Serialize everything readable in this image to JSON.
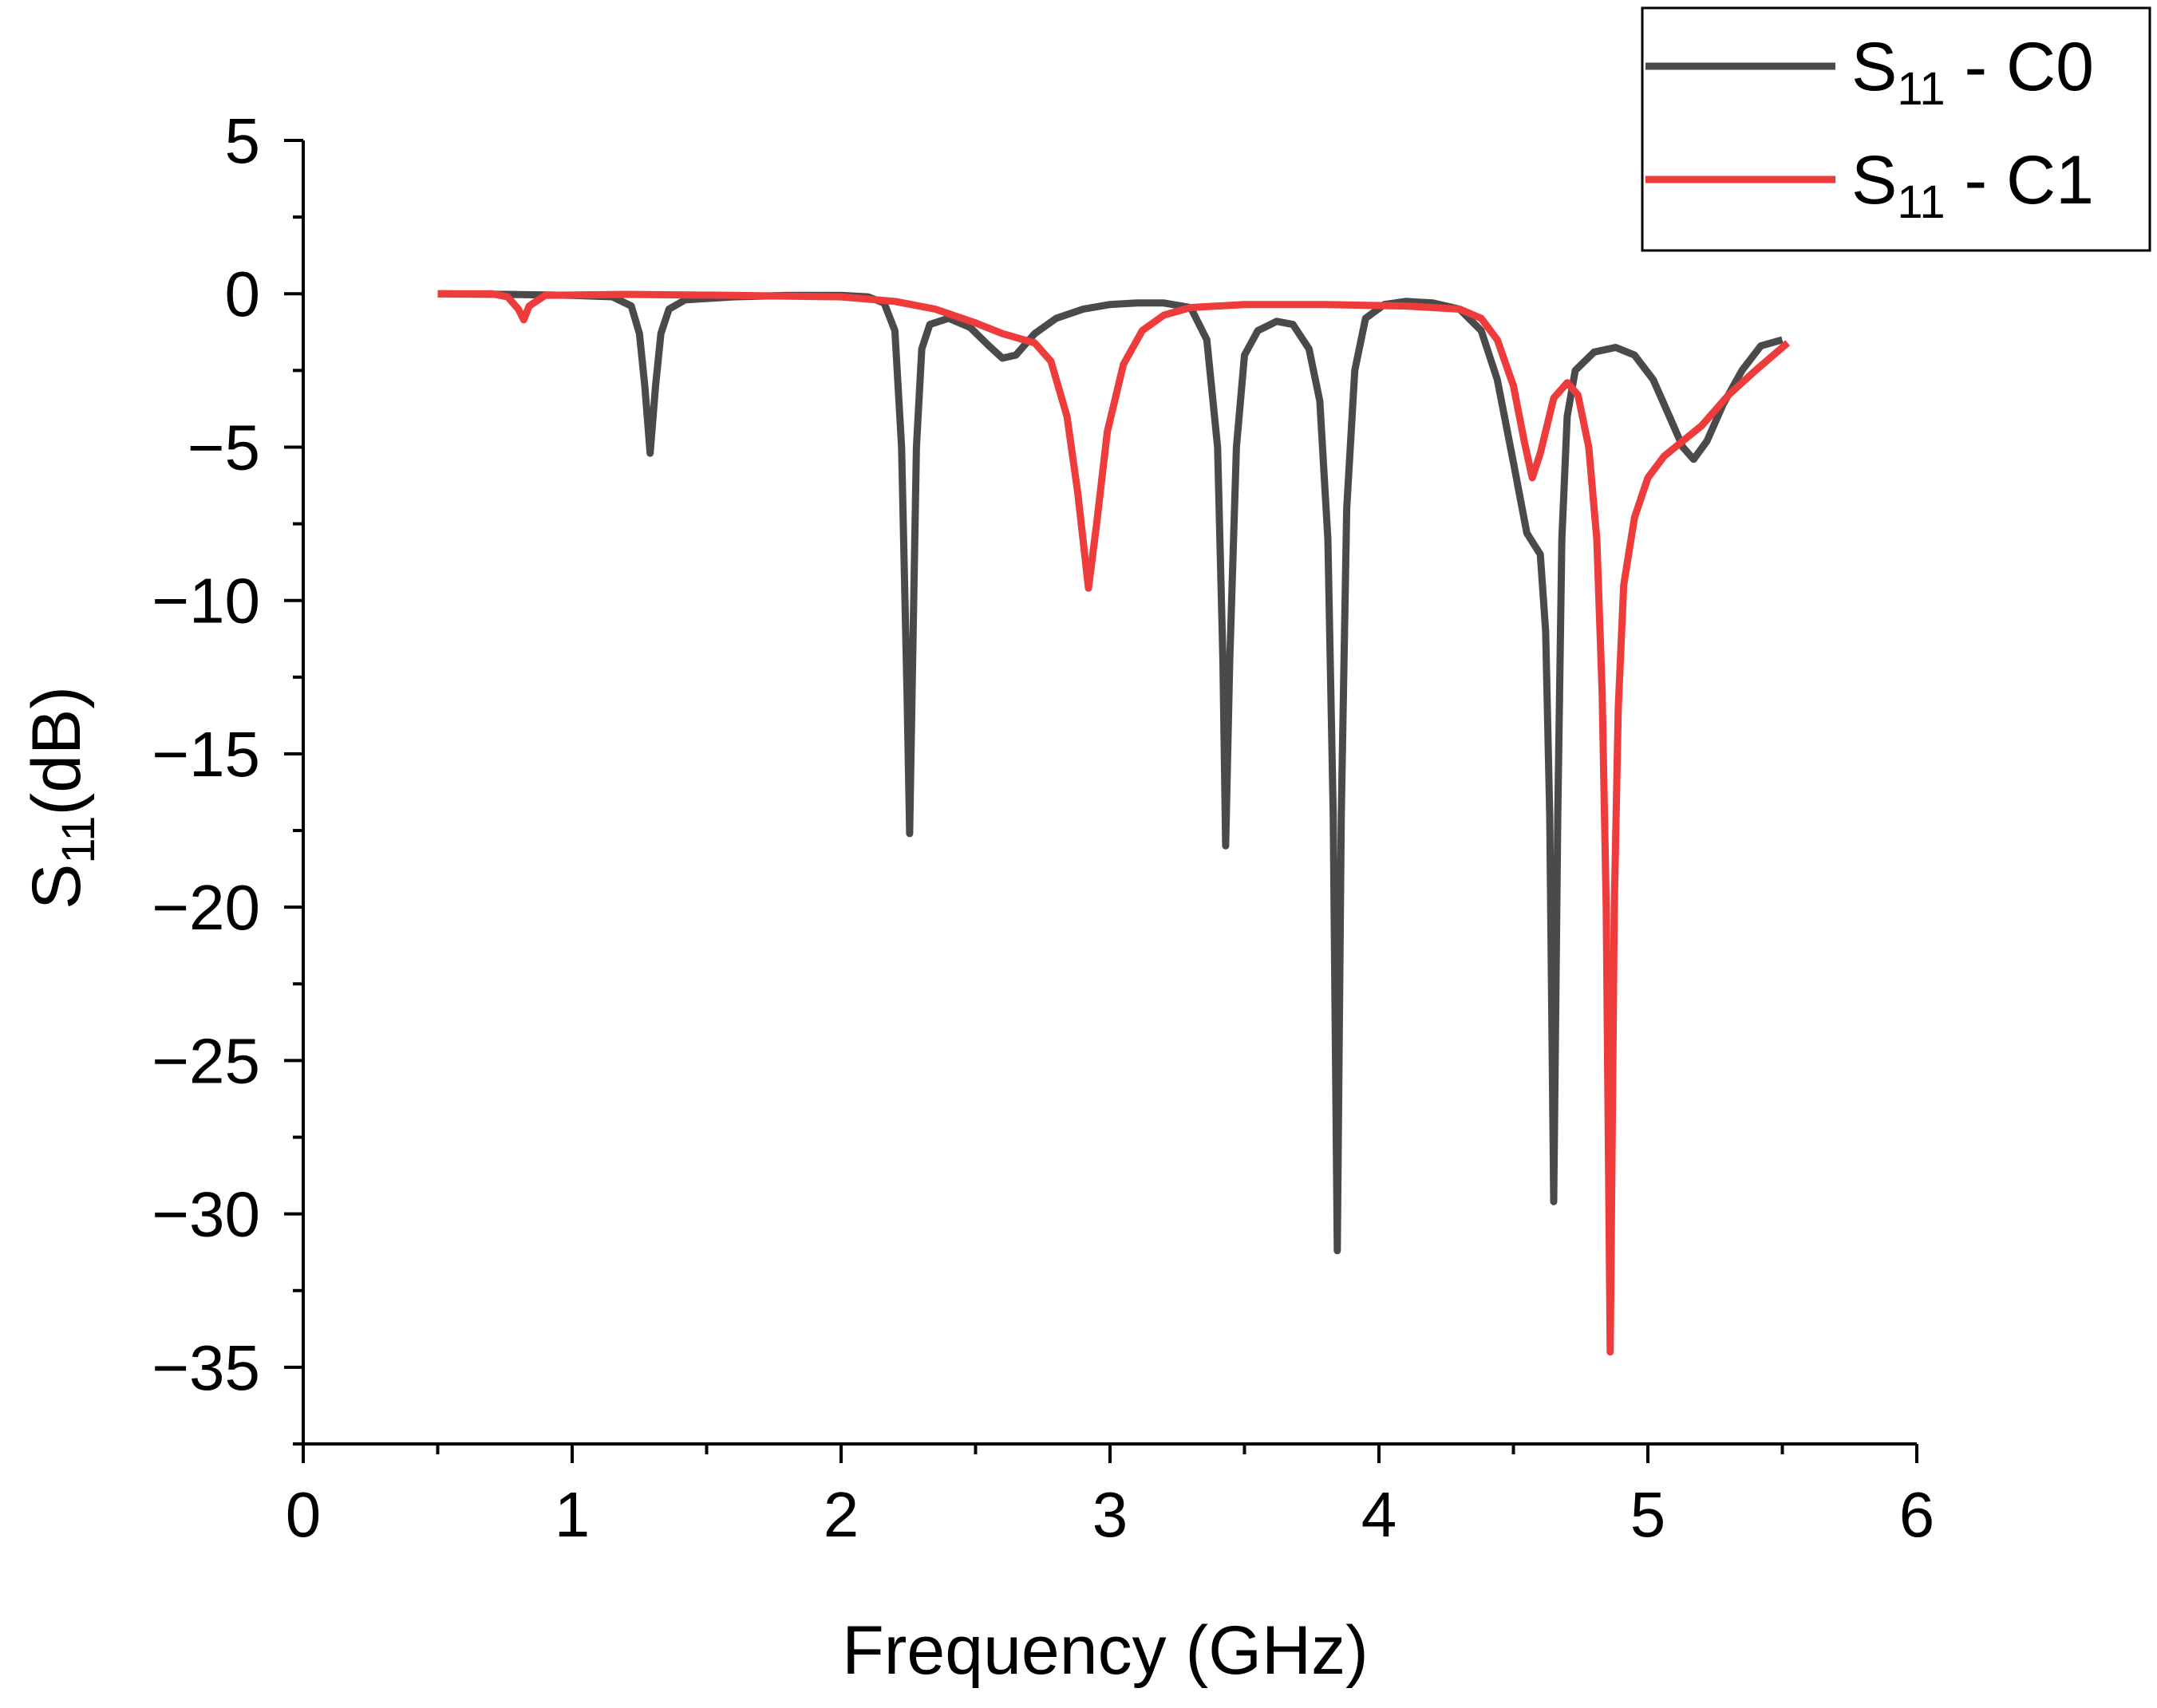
{
  "chart_data": {
    "type": "line",
    "xlabel": "Frequency (GHz)",
    "ylabel": {
      "main": "S",
      "sub": "11",
      "unit": "(dB)"
    },
    "xlim": [
      0,
      6
    ],
    "ylim": [
      -37.5,
      5
    ],
    "x_ticks": [
      0,
      1,
      2,
      3,
      4,
      5,
      6
    ],
    "x_tick_labels": [
      "0",
      "1",
      "2",
      "3",
      "4",
      "5",
      "6"
    ],
    "y_ticks": [
      5,
      0,
      -5,
      -10,
      -15,
      -20,
      -25,
      -30,
      -35
    ],
    "y_tick_labels": [
      "5",
      "0",
      "−5",
      "−10",
      "−15",
      "−20",
      "−25",
      "−30",
      "−35"
    ],
    "grid": false,
    "legend_position": "top-right",
    "series": [
      {
        "name": "S11 - C0",
        "legend": {
          "main": "S",
          "sub": "11",
          "suffix": " - C0"
        },
        "color": "#4a4a4a",
        "points": [
          [
            0.5,
            0
          ],
          [
            0.75,
            -0.02
          ],
          [
            1.0,
            -0.05
          ],
          [
            1.15,
            -0.1
          ],
          [
            1.22,
            -0.4
          ],
          [
            1.25,
            -1.3
          ],
          [
            1.27,
            -3.0
          ],
          [
            1.29,
            -5.2
          ],
          [
            1.31,
            -3.0
          ],
          [
            1.33,
            -1.3
          ],
          [
            1.36,
            -0.5
          ],
          [
            1.42,
            -0.2
          ],
          [
            1.6,
            -0.1
          ],
          [
            1.8,
            -0.05
          ],
          [
            2.0,
            -0.05
          ],
          [
            2.1,
            -0.1
          ],
          [
            2.16,
            -0.3
          ],
          [
            2.2,
            -1.2
          ],
          [
            2.225,
            -5.0
          ],
          [
            2.245,
            -13.0
          ],
          [
            2.255,
            -17.6
          ],
          [
            2.265,
            -12.5
          ],
          [
            2.28,
            -5.0
          ],
          [
            2.3,
            -1.8
          ],
          [
            2.33,
            -1.0
          ],
          [
            2.4,
            -0.8
          ],
          [
            2.48,
            -1.1
          ],
          [
            2.55,
            -1.7
          ],
          [
            2.6,
            -2.1
          ],
          [
            2.65,
            -2.0
          ],
          [
            2.72,
            -1.3
          ],
          [
            2.8,
            -0.8
          ],
          [
            2.9,
            -0.5
          ],
          [
            3.0,
            -0.35
          ],
          [
            3.1,
            -0.3
          ],
          [
            3.2,
            -0.3
          ],
          [
            3.3,
            -0.45
          ],
          [
            3.36,
            -1.5
          ],
          [
            3.4,
            -5.0
          ],
          [
            3.42,
            -12.0
          ],
          [
            3.43,
            -18.0
          ],
          [
            3.445,
            -12.0
          ],
          [
            3.47,
            -5.0
          ],
          [
            3.5,
            -2.0
          ],
          [
            3.55,
            -1.2
          ],
          [
            3.62,
            -0.9
          ],
          [
            3.68,
            -1.0
          ],
          [
            3.74,
            -1.8
          ],
          [
            3.78,
            -3.5
          ],
          [
            3.81,
            -8.0
          ],
          [
            3.83,
            -17.0
          ],
          [
            3.845,
            -31.2
          ],
          [
            3.86,
            -17.0
          ],
          [
            3.88,
            -7.0
          ],
          [
            3.91,
            -2.5
          ],
          [
            3.95,
            -0.8
          ],
          [
            4.02,
            -0.35
          ],
          [
            4.1,
            -0.25
          ],
          [
            4.2,
            -0.3
          ],
          [
            4.3,
            -0.5
          ],
          [
            4.38,
            -1.2
          ],
          [
            4.44,
            -2.8
          ],
          [
            4.5,
            -5.5
          ],
          [
            4.55,
            -7.8
          ],
          [
            4.6,
            -8.5
          ],
          [
            4.62,
            -11.0
          ],
          [
            4.635,
            -17.0
          ],
          [
            4.65,
            -29.6
          ],
          [
            4.665,
            -17.0
          ],
          [
            4.68,
            -8.0
          ],
          [
            4.7,
            -4.0
          ],
          [
            4.73,
            -2.5
          ],
          [
            4.8,
            -1.9
          ],
          [
            4.88,
            -1.75
          ],
          [
            4.95,
            -2.0
          ],
          [
            5.02,
            -2.8
          ],
          [
            5.08,
            -4.0
          ],
          [
            5.13,
            -5.0
          ],
          [
            5.17,
            -5.4
          ],
          [
            5.22,
            -4.8
          ],
          [
            5.28,
            -3.6
          ],
          [
            5.35,
            -2.5
          ],
          [
            5.42,
            -1.7
          ],
          [
            5.5,
            -1.5
          ]
        ]
      },
      {
        "name": "S11 - C1",
        "legend": {
          "main": "S",
          "sub": "11",
          "suffix": " - C1"
        },
        "color": "#ee3b3b",
        "points": [
          [
            0.5,
            0
          ],
          [
            0.7,
            0
          ],
          [
            0.76,
            -0.1
          ],
          [
            0.8,
            -0.5
          ],
          [
            0.82,
            -0.85
          ],
          [
            0.84,
            -0.4
          ],
          [
            0.9,
            -0.05
          ],
          [
            1.2,
            -0.02
          ],
          [
            1.6,
            -0.05
          ],
          [
            2.0,
            -0.1
          ],
          [
            2.2,
            -0.25
          ],
          [
            2.35,
            -0.5
          ],
          [
            2.5,
            -0.95
          ],
          [
            2.6,
            -1.3
          ],
          [
            2.72,
            -1.6
          ],
          [
            2.78,
            -2.2
          ],
          [
            2.84,
            -4.0
          ],
          [
            2.88,
            -6.5
          ],
          [
            2.92,
            -9.6
          ],
          [
            2.95,
            -7.5
          ],
          [
            2.99,
            -4.5
          ],
          [
            3.05,
            -2.3
          ],
          [
            3.12,
            -1.2
          ],
          [
            3.2,
            -0.7
          ],
          [
            3.3,
            -0.45
          ],
          [
            3.5,
            -0.35
          ],
          [
            3.8,
            -0.35
          ],
          [
            4.1,
            -0.4
          ],
          [
            4.3,
            -0.5
          ],
          [
            4.38,
            -0.8
          ],
          [
            4.44,
            -1.5
          ],
          [
            4.5,
            -3.0
          ],
          [
            4.54,
            -4.8
          ],
          [
            4.57,
            -6.0
          ],
          [
            4.6,
            -5.2
          ],
          [
            4.65,
            -3.4
          ],
          [
            4.7,
            -2.9
          ],
          [
            4.74,
            -3.3
          ],
          [
            4.78,
            -5.0
          ],
          [
            4.81,
            -8.0
          ],
          [
            4.83,
            -13.0
          ],
          [
            4.845,
            -20.0
          ],
          [
            4.86,
            -34.5
          ],
          [
            4.875,
            -20.0
          ],
          [
            4.89,
            -13.5
          ],
          [
            4.91,
            -9.5
          ],
          [
            4.95,
            -7.3
          ],
          [
            5.0,
            -6.0
          ],
          [
            5.06,
            -5.3
          ],
          [
            5.13,
            -4.8
          ],
          [
            5.2,
            -4.3
          ],
          [
            5.3,
            -3.3
          ],
          [
            5.4,
            -2.5
          ],
          [
            5.52,
            -1.6
          ]
        ]
      }
    ]
  }
}
